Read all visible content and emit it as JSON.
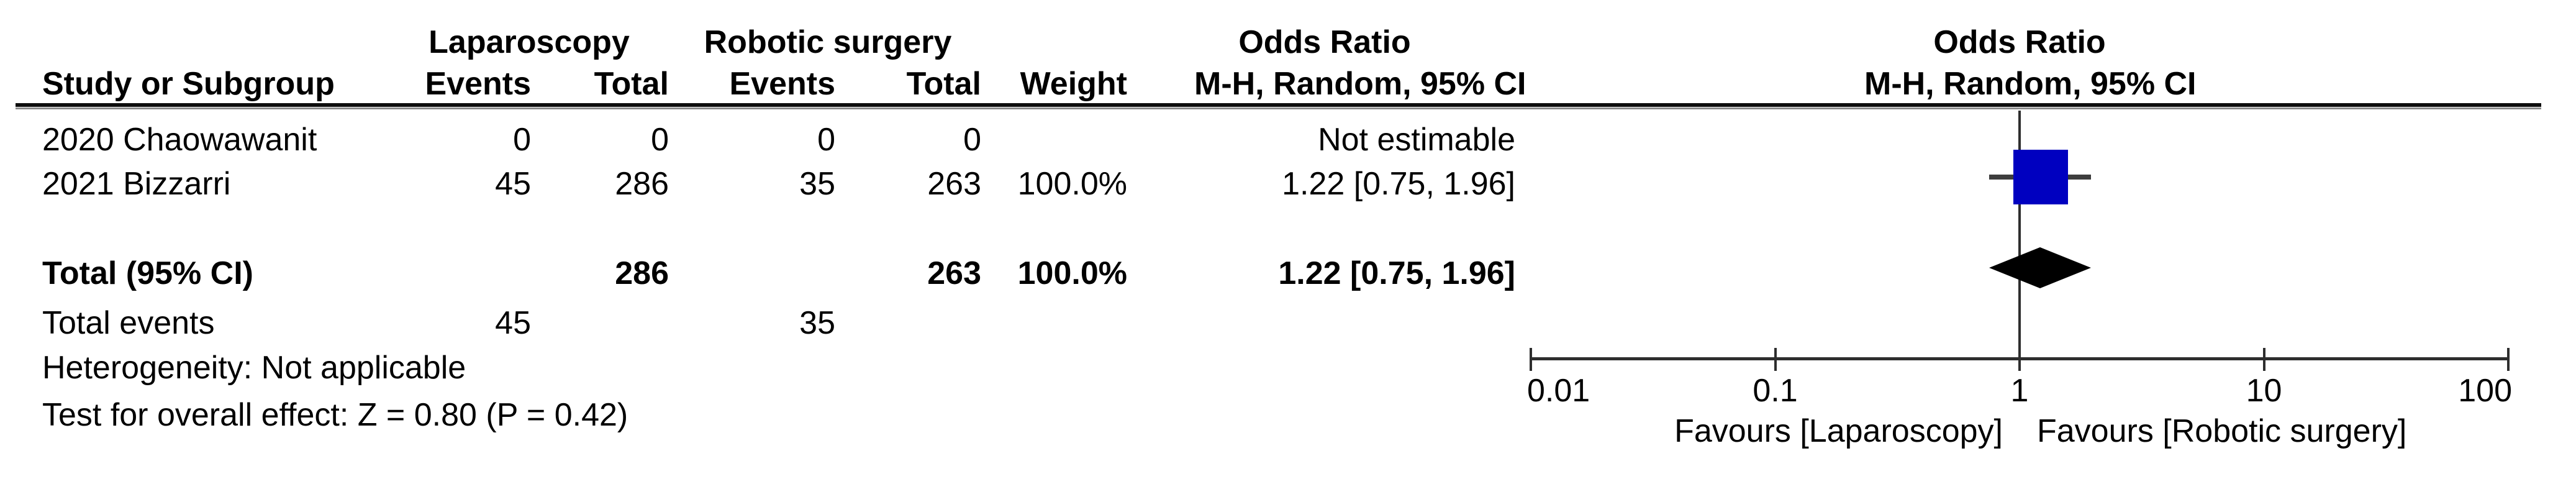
{
  "header": {
    "study": "Study or Subgroup",
    "group1": "Laparoscopy",
    "group2": "Robotic surgery",
    "events1": "Events",
    "total1": "Total",
    "events2": "Events",
    "total2": "Total",
    "weight": "Weight",
    "or_col_title": "Odds Ratio",
    "or_col_subtitle": "M-H, Random, 95% CI",
    "plot_title": "Odds Ratio",
    "plot_subtitle": "M-H, Random, 95% CI"
  },
  "rows": [
    {
      "study": "2020 Chaowawanit",
      "g1_events": "0",
      "g1_total": "0",
      "g2_events": "0",
      "g2_total": "0",
      "weight": "",
      "or_ci": "Not estimable"
    },
    {
      "study": "2021 Bizzarri",
      "g1_events": "45",
      "g1_total": "286",
      "g2_events": "35",
      "g2_total": "263",
      "weight": "100.0%",
      "or_ci": "1.22 [0.75, 1.96]"
    }
  ],
  "total": {
    "label": "Total (95% CI)",
    "g1_total": "286",
    "g2_total": "263",
    "weight": "100.0%",
    "or_ci": "1.22 [0.75, 1.96]"
  },
  "total_events": {
    "label": "Total events",
    "g1_events": "45",
    "g2_events": "35"
  },
  "footer": {
    "heterogeneity": "Heterogeneity: Not applicable",
    "overall_effect": "Test for overall effect: Z = 0.80 (P = 0.42)"
  },
  "plot": {
    "favours_left": "Favours [Laparoscopy]",
    "favours_right": "Favours [Robotic surgery]",
    "colors": {
      "square": "#0000C0",
      "diamond": "#000000",
      "axis": "#2e2e2e",
      "ci_line": "#3d3d3d"
    }
  },
  "chart_data": {
    "type": "forest",
    "effect_measure": "Odds Ratio (M-H, Random, 95% CI)",
    "x_scale": "log10",
    "x_ticks": [
      0.01,
      0.1,
      1,
      10,
      100
    ],
    "x_tick_labels": [
      "0.01",
      "0.1",
      "1",
      "10",
      "100"
    ],
    "xlim": [
      0.01,
      100
    ],
    "studies": [
      {
        "name": "2020 Chaowawanit",
        "group1_events": 0,
        "group1_total": 0,
        "group2_events": 0,
        "group2_total": 0,
        "weight_pct": null,
        "or": null,
        "ci_low": null,
        "ci_high": null,
        "note": "Not estimable"
      },
      {
        "name": "2021 Bizzarri",
        "group1_events": 45,
        "group1_total": 286,
        "group2_events": 35,
        "group2_total": 263,
        "weight_pct": 100.0,
        "or": 1.22,
        "ci_low": 0.75,
        "ci_high": 1.96
      }
    ],
    "total": {
      "group1_total": 286,
      "group2_total": 263,
      "group1_events": 45,
      "group2_events": 35,
      "weight_pct": 100.0,
      "or": 1.22,
      "ci_low": 0.75,
      "ci_high": 1.96
    },
    "heterogeneity": "Not applicable",
    "overall_effect": {
      "z": 0.8,
      "p": 0.42
    }
  }
}
